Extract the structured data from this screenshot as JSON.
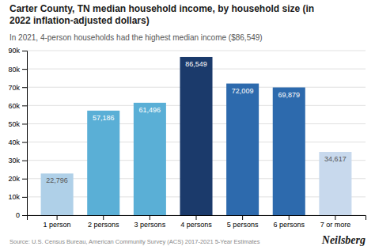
{
  "chart_data": {
    "type": "bar",
    "title": "Carter County, TN median household income, by household size (in\n2022 inflation-adjusted dollars)",
    "subtitle": "In 2021, 4-person households had the highest median income ($86,549)",
    "categories": [
      "1 person",
      "2 persons",
      "3 persons",
      "4 persons",
      "5 persons",
      "6 persons",
      "7 or more"
    ],
    "values": [
      22796,
      57186,
      61496,
      86549,
      72009,
      69879,
      34617
    ],
    "value_labels": [
      "22,796",
      "57,186",
      "61,496",
      "86,549",
      "72,009",
      "69,879",
      "34,617"
    ],
    "data_labels": true,
    "colors": [
      "#afd0e8",
      "#5aafd6",
      "#5aafd6",
      "#1b3a6b",
      "#2d6aad",
      "#2d6aad",
      "#c8d9ed"
    ],
    "ylim": [
      0,
      90000
    ],
    "yticks": [
      0,
      {
        "value": 10000,
        "label": "10k"
      },
      {
        "value": 20000,
        "label": "20k"
      },
      {
        "value": 30000,
        "label": "30k"
      },
      {
        "value": 40000,
        "label": "40k"
      },
      {
        "value": 50000,
        "label": "50k"
      },
      {
        "value": 60000,
        "label": "60k"
      },
      {
        "value": 70000,
        "label": "70k"
      },
      {
        "value": 80000,
        "label": "80k"
      },
      {
        "value": 90000,
        "label": "90k"
      }
    ],
    "grid": true,
    "annotations": [
      "Source: U.S. Census Bureau, American Community Survey (ACS) 2017-2021 5-Year Estimates",
      "Neilsberg"
    ]
  }
}
